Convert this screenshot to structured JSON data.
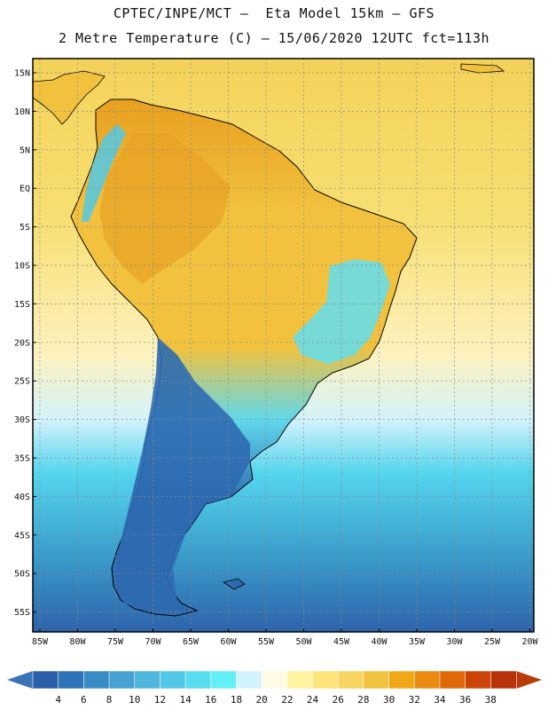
{
  "header": {
    "line1": "CPTEC/INPE/MCT –  Eta Model 15km – GFS",
    "line2": "2 Metre Temperature (C) – 15/06/2020 12UTC fct=113h"
  },
  "map": {
    "lat_labels": [
      "15N",
      "10N",
      "5N",
      "EQ",
      "5S",
      "10S",
      "15S",
      "20S",
      "25S",
      "30S",
      "35S",
      "40S",
      "45S",
      "50S",
      "55S"
    ],
    "lon_labels": [
      "85W",
      "80W",
      "75W",
      "70W",
      "65W",
      "60W",
      "55W",
      "50W",
      "45W",
      "40W",
      "35W",
      "30W",
      "25W",
      "20W"
    ]
  },
  "legend": {
    "levels": [
      "4",
      "6",
      "8",
      "10",
      "12",
      "14",
      "16",
      "18",
      "20",
      "22",
      "24",
      "26",
      "28",
      "30",
      "32",
      "34",
      "36",
      "38"
    ],
    "colors": [
      "#2b5fa8",
      "#2f74b8",
      "#3a8cc6",
      "#45a2d1",
      "#4fb6dc",
      "#53c8e6",
      "#58dcef",
      "#62f0f6",
      "#d2f3fb",
      "#fffbe6",
      "#fef3a0",
      "#fde57a",
      "#f8d560",
      "#f2c340",
      "#f0a818",
      "#ea8a10",
      "#e06808",
      "#cc4408",
      "#b83408"
    ],
    "below_color": "#3a73b6",
    "above_color": "#b83b0a"
  },
  "fields": {
    "ocean_north": "#f4d259",
    "ocean_equatorial": "#f7df72",
    "ocean_subtropic": "#fdf2c0",
    "ocean_mid": "#d3f2fb",
    "ocean_south1": "#57d6ee",
    "ocean_south2": "#3ea8d2",
    "ocean_polar": "#2d63aa",
    "land_warm": "#f2c23e",
    "land_hot": "#e8a020",
    "land_cool": "#60d8ec",
    "land_cold": "#2e6ab0"
  }
}
